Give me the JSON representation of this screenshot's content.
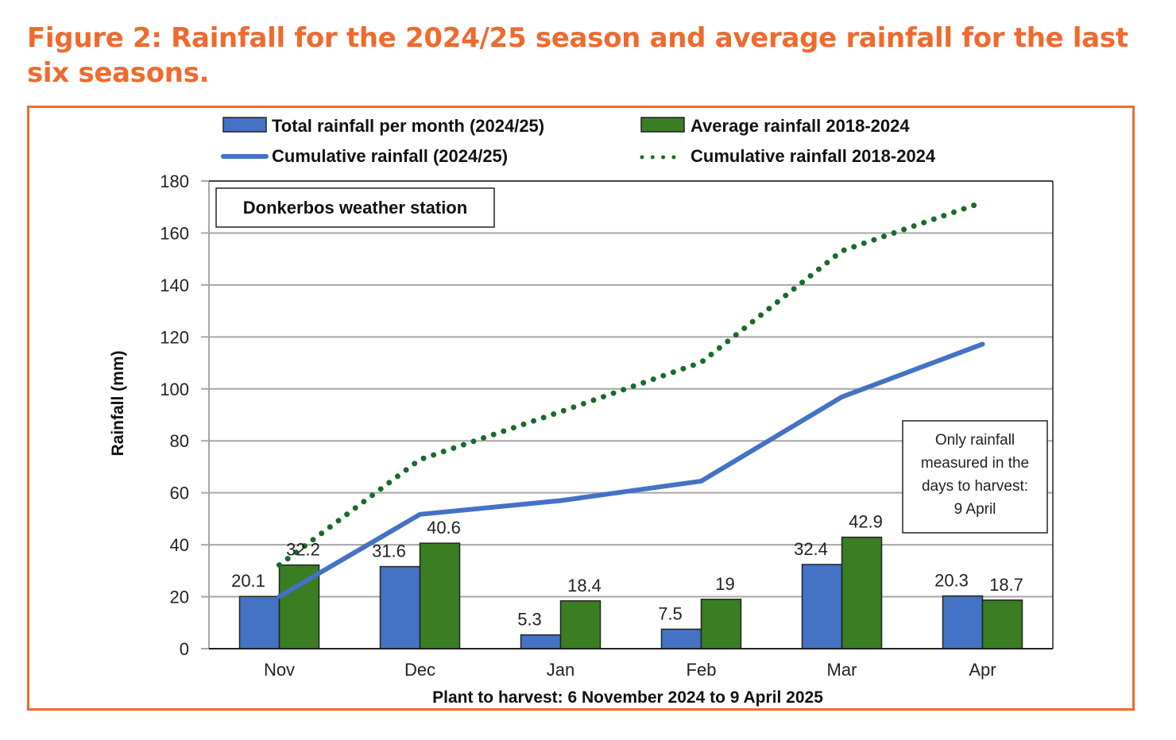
{
  "figure": {
    "title": "Figure 2: Rainfall for the 2024/25 season and average rainfall for the last six seasons."
  },
  "colors": {
    "accent": "#ef6a2e",
    "blue": "#4472c4",
    "green": "#3a7d22",
    "dotted_green": "#1a6b2a",
    "grid": "#a6a6a6"
  },
  "chart_data": {
    "type": "bar",
    "title": "Figure 2: Rainfall for the 2024/25 season and average rainfall for the last six seasons.",
    "xlabel": "Plant to harvest: 6 November 2024 to 9 April 2025",
    "ylabel": "Rainfall (mm)",
    "ylim": [
      0,
      180
    ],
    "yticks": [
      0,
      20,
      40,
      60,
      80,
      100,
      120,
      140,
      160,
      180
    ],
    "grid": true,
    "legend_position": "top",
    "categories": [
      "Nov",
      "Dec",
      "Jan",
      "Feb",
      "Mar",
      "Apr"
    ],
    "series": [
      {
        "name": "Total rainfall per month (2024/25)",
        "type": "bar",
        "values": [
          20.1,
          31.6,
          5.3,
          7.5,
          32.4,
          20.3
        ],
        "labels": [
          "20.1",
          "31.6",
          "5.3",
          "7.5",
          "32.4",
          "20.3"
        ]
      },
      {
        "name": "Average rainfall 2018-2024",
        "type": "bar",
        "values": [
          32.2,
          40.6,
          18.4,
          19,
          42.9,
          18.7
        ],
        "labels": [
          "32.2",
          "40.6",
          "18.4",
          "19",
          "42.9",
          "18.7"
        ]
      },
      {
        "name": "Cumulative rainfall (2024/25)",
        "type": "line",
        "style": "solid",
        "values": [
          20.1,
          51.7,
          57.0,
          64.5,
          96.9,
          117.2
        ]
      },
      {
        "name": "Cumulative rainfall 2018-2024",
        "type": "line",
        "style": "dotted",
        "values": [
          32.2,
          72.8,
          91.2,
          110.2,
          153.1,
          171.8
        ]
      }
    ],
    "annotations": [
      {
        "name": "station-label",
        "text": "Donkerbos weather station"
      },
      {
        "name": "harvest-note",
        "lines": [
          "Only rainfall",
          "measured in the",
          "days to harvest:",
          "9 April"
        ]
      }
    ]
  }
}
